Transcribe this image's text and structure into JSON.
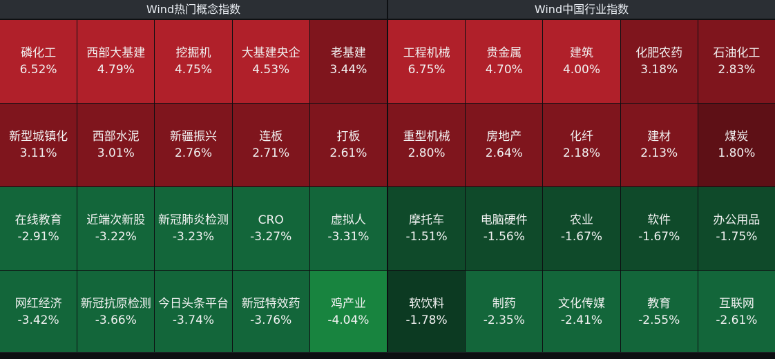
{
  "left_panel": {
    "title": "Wind热门概念指数",
    "cells": [
      {
        "name": "磷化工",
        "pct": "6.52%",
        "color": "#b0202a"
      },
      {
        "name": "西部大基建",
        "pct": "4.79%",
        "color": "#b0202a"
      },
      {
        "name": "挖掘机",
        "pct": "4.75%",
        "color": "#b0202a"
      },
      {
        "name": "大基建央企",
        "pct": "4.53%",
        "color": "#b0202a"
      },
      {
        "name": "老基建",
        "pct": "3.44%",
        "color": "#7f151d"
      },
      {
        "name": "新型城镇化",
        "pct": "3.11%",
        "color": "#7f151d"
      },
      {
        "name": "西部水泥",
        "pct": "3.01%",
        "color": "#7f151d"
      },
      {
        "name": "新疆振兴",
        "pct": "2.76%",
        "color": "#7f151d"
      },
      {
        "name": "连板",
        "pct": "2.71%",
        "color": "#7f151d"
      },
      {
        "name": "打板",
        "pct": "2.61%",
        "color": "#7f151d"
      },
      {
        "name": "在线教育",
        "pct": "-2.91%",
        "color": "#13663a"
      },
      {
        "name": "近端次新股",
        "pct": "-3.22%",
        "color": "#13663a"
      },
      {
        "name": "新冠肺炎检测",
        "pct": "-3.23%",
        "color": "#13663a"
      },
      {
        "name": "CRO",
        "pct": "-3.27%",
        "color": "#13663a"
      },
      {
        "name": "虚拟人",
        "pct": "-3.31%",
        "color": "#13663a"
      },
      {
        "name": "网红经济",
        "pct": "-3.42%",
        "color": "#13663a"
      },
      {
        "name": "新冠抗原检测",
        "pct": "-3.66%",
        "color": "#13663a"
      },
      {
        "name": "今日头条平台",
        "pct": "-3.74%",
        "color": "#13663a"
      },
      {
        "name": "新冠特效药",
        "pct": "-3.76%",
        "color": "#13663a"
      },
      {
        "name": "鸡产业",
        "pct": "-4.04%",
        "color": "#18843f"
      }
    ]
  },
  "right_panel": {
    "title": "Wind中国行业指数",
    "cells": [
      {
        "name": "工程机械",
        "pct": "6.75%",
        "color": "#b0202a"
      },
      {
        "name": "贵金属",
        "pct": "4.70%",
        "color": "#b0202a"
      },
      {
        "name": "建筑",
        "pct": "4.00%",
        "color": "#b0202a"
      },
      {
        "name": "化肥农药",
        "pct": "3.18%",
        "color": "#7f151d"
      },
      {
        "name": "石油化工",
        "pct": "2.83%",
        "color": "#7f151d"
      },
      {
        "name": "重型机械",
        "pct": "2.80%",
        "color": "#7f151d"
      },
      {
        "name": "房地产",
        "pct": "2.64%",
        "color": "#7f151d"
      },
      {
        "name": "化纤",
        "pct": "2.18%",
        "color": "#7f151d"
      },
      {
        "name": "建材",
        "pct": "2.13%",
        "color": "#7f151d"
      },
      {
        "name": "煤炭",
        "pct": "1.80%",
        "color": "#5e1016"
      },
      {
        "name": "摩托车",
        "pct": "-1.51%",
        "color": "#0f4a2a"
      },
      {
        "name": "电脑硬件",
        "pct": "-1.56%",
        "color": "#0f4a2a"
      },
      {
        "name": "农业",
        "pct": "-1.67%",
        "color": "#0f4a2a"
      },
      {
        "name": "软件",
        "pct": "-1.67%",
        "color": "#0f4a2a"
      },
      {
        "name": "办公用品",
        "pct": "-1.75%",
        "color": "#0f4a2a"
      },
      {
        "name": "软饮料",
        "pct": "-1.78%",
        "color": "#0c3a22"
      },
      {
        "name": "制药",
        "pct": "-2.35%",
        "color": "#13663a"
      },
      {
        "name": "文化传媒",
        "pct": "-2.41%",
        "color": "#13663a"
      },
      {
        "name": "教育",
        "pct": "-2.55%",
        "color": "#13663a"
      },
      {
        "name": "互联网",
        "pct": "-2.61%",
        "color": "#13663a"
      }
    ]
  }
}
